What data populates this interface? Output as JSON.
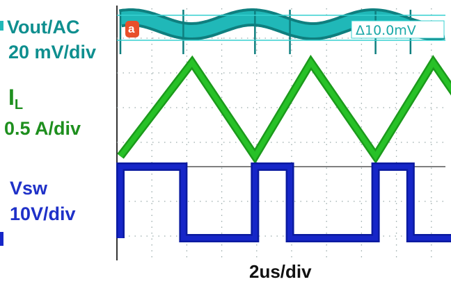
{
  "channels": {
    "vout": {
      "label": "Vout/AC",
      "scale": "20 mV/div",
      "color": "#20b8b8"
    },
    "il": {
      "label_main": "I",
      "label_sub": "L",
      "scale": "0.5 A/div",
      "color": "#27c127"
    },
    "vsw": {
      "label": "Vsw",
      "scale": "10V/div",
      "color": "#1626c8"
    }
  },
  "timebase": "2us/div",
  "cursor": {
    "badge": "a",
    "readout": "Δ10.0mV",
    "color": "#35d0d0",
    "badge_color": "#e8502a"
  },
  "chart_data": {
    "type": "line",
    "title": "",
    "xlabel": "2us/div",
    "x_unit": "us",
    "x_range": [
      0,
      16.7
    ],
    "switching_period_us": 3.47,
    "series": [
      {
        "name": "Vout/AC",
        "unit": "mV",
        "scale_per_div": 20,
        "ripple_pp_mV": 10.0,
        "peaks_us": [
          2.05,
          5.45,
          8.95,
          12.4
        ],
        "troughs_us": [
          0.0,
          3.85,
          7.3,
          10.8
        ]
      },
      {
        "name": "IL",
        "unit": "A",
        "scale_per_div": 0.5,
        "ripple_pp_A": 0.9,
        "peaks_us": [
          2.05,
          5.45,
          8.95,
          12.4
        ],
        "valleys_us": [
          0.0,
          3.85,
          7.3,
          10.8,
          14.25
        ]
      },
      {
        "name": "Vsw",
        "unit": "V",
        "scale_per_div": 10,
        "high_V": 20,
        "low_V": 0,
        "rising_edges_us": [
          0.0,
          3.85,
          7.3,
          10.8
        ],
        "falling_edges_us": [
          1.8,
          4.85,
          8.3,
          11.8
        ]
      }
    ]
  }
}
